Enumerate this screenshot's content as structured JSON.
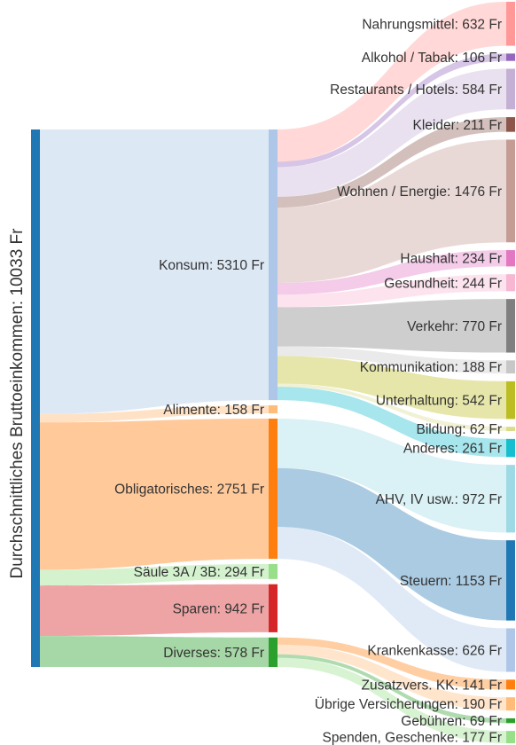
{
  "chart_data": {
    "type": "sankey",
    "unit": "Fr",
    "root": {
      "id": "root",
      "label": "Durchschnittliches Bruttoeinkommen: 10033 Fr",
      "value": 10033,
      "color": "#1f77b4"
    },
    "middle": [
      {
        "id": "konsum",
        "label": "Konsum: 5310 Fr",
        "value": 5310,
        "color": "#aec7e8",
        "link_color": "#aec7e8"
      },
      {
        "id": "alimente",
        "label": "Alimente: 158 Fr",
        "value": 158,
        "color": "#ffbb78",
        "link_color": "#ffbb78"
      },
      {
        "id": "oblig",
        "label": "Obligatorisches: 2751 Fr",
        "value": 2751,
        "color": "#ff7f0e",
        "link_color": "#ff7f0e"
      },
      {
        "id": "saeule",
        "label": "Säule 3A / 3B: 294 Fr",
        "value": 294,
        "color": "#98df8a",
        "link_color": "#98df8a"
      },
      {
        "id": "sparen",
        "label": "Sparen: 942 Fr",
        "value": 942,
        "color": "#d62728",
        "link_color": "#d62728"
      },
      {
        "id": "diverses",
        "label": "Diverses: 578 Fr",
        "value": 578,
        "color": "#2ca02c",
        "link_color": "#2ca02c"
      }
    ],
    "leaves": [
      {
        "id": "nahrung",
        "parent": "konsum",
        "label": "Nahrungsmittel: 632 Fr",
        "value": 632,
        "color": "#ff9896"
      },
      {
        "id": "alkohol",
        "parent": "konsum",
        "label": "Alkohol / Tabak: 106 Fr",
        "value": 106,
        "color": "#9467bd"
      },
      {
        "id": "restaurants",
        "parent": "konsum",
        "label": "Restaurants / Hotels: 584 Fr",
        "value": 584,
        "color": "#c5b0d5"
      },
      {
        "id": "kleider",
        "parent": "konsum",
        "label": "Kleider: 211 Fr",
        "value": 211,
        "color": "#8c564b"
      },
      {
        "id": "wohnen",
        "parent": "konsum",
        "label": "Wohnen / Energie: 1476 Fr",
        "value": 1476,
        "color": "#c49c94"
      },
      {
        "id": "haushalt",
        "parent": "konsum",
        "label": "Haushalt: 234 Fr",
        "value": 234,
        "color": "#e377c2"
      },
      {
        "id": "gesundheit",
        "parent": "konsum",
        "label": "Gesundheit: 244 Fr",
        "value": 244,
        "color": "#f7b6d2"
      },
      {
        "id": "verkehr",
        "parent": "konsum",
        "label": "Verkehr: 770 Fr",
        "value": 770,
        "color": "#7f7f7f"
      },
      {
        "id": "kommunikation",
        "parent": "konsum",
        "label": "Kommunikation: 188 Fr",
        "value": 188,
        "color": "#c7c7c7"
      },
      {
        "id": "unterhaltung",
        "parent": "konsum",
        "label": "Unterhaltung: 542 Fr",
        "value": 542,
        "color": "#bcbd22"
      },
      {
        "id": "bildung",
        "parent": "konsum",
        "label": "Bildung: 62 Fr",
        "value": 62,
        "color": "#dbdb8d"
      },
      {
        "id": "anderes",
        "parent": "konsum",
        "label": "Anderes: 261 Fr",
        "value": 261,
        "color": "#17becf"
      },
      {
        "id": "ahv",
        "parent": "oblig",
        "label": "AHV, IV usw.: 972 Fr",
        "value": 972,
        "color": "#9edae5"
      },
      {
        "id": "steuern",
        "parent": "oblig",
        "label": "Steuern: 1153 Fr",
        "value": 1153,
        "color": "#1f77b4"
      },
      {
        "id": "kranken",
        "parent": "oblig",
        "label": "Krankenkasse: 626 Fr",
        "value": 626,
        "color": "#aec7e8"
      },
      {
        "id": "zusatz",
        "parent": "diverses",
        "label": "Zusatzvers. KK: 141 Fr",
        "value": 141,
        "color": "#ff7f0e"
      },
      {
        "id": "uebrige",
        "parent": "diverses",
        "label": "Übrige Versicherungen: 190 Fr",
        "value": 190,
        "color": "#ffbb78"
      },
      {
        "id": "gebuehren",
        "parent": "diverses",
        "label": "Gebühren: 69 Fr",
        "value": 69,
        "color": "#2ca02c"
      },
      {
        "id": "spenden",
        "parent": "diverses",
        "label": "Spenden, Geschenke: 177 Fr",
        "value": 177,
        "color": "#98df8a"
      }
    ]
  }
}
